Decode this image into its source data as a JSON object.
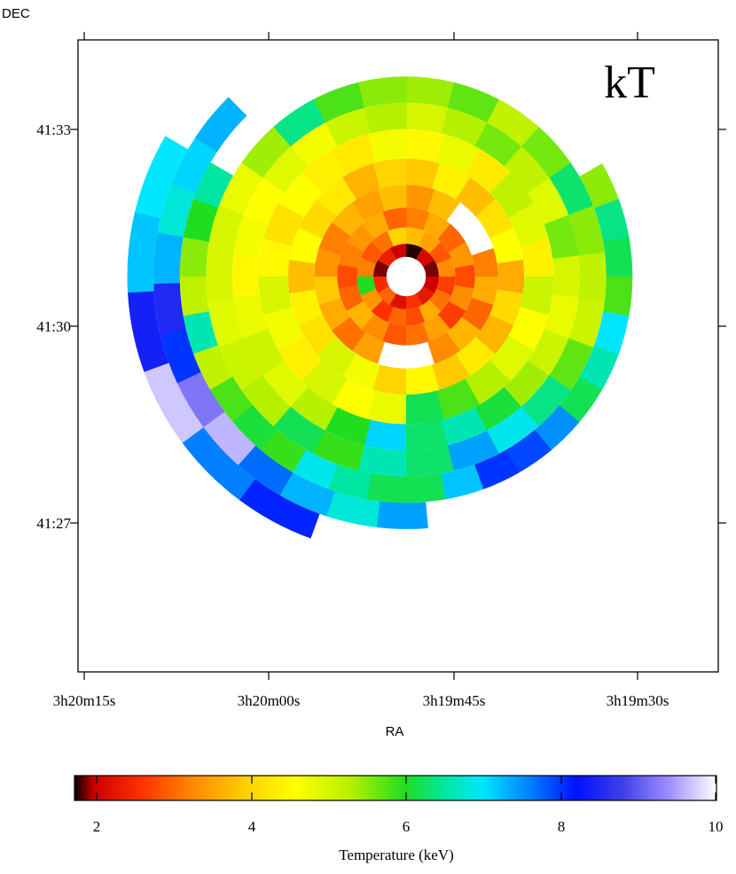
{
  "chart_data": {
    "type": "heatmap",
    "title": "kT",
    "xlabel": "RA",
    "ylabel": "DEC",
    "x_ticks": [
      "3h20m15s",
      "3h20m00s",
      "3h19m45s",
      "3h19m30s"
    ],
    "y_ticks": [
      "41:33",
      "41:30",
      "41:27"
    ],
    "colorbar": {
      "label": "Temperature (keV)",
      "ticks": [
        "2",
        "4",
        "6",
        "8",
        "10"
      ],
      "range": [
        1.75,
        10
      ],
      "stops": [
        {
          "v": 1.75,
          "color": "#000000"
        },
        {
          "v": 2.0,
          "color": "#cc0000"
        },
        {
          "v": 2.6,
          "color": "#ff3000"
        },
        {
          "v": 3.3,
          "color": "#ff8c00"
        },
        {
          "v": 4.0,
          "color": "#ffd400"
        },
        {
          "v": 4.6,
          "color": "#ffff00"
        },
        {
          "v": 5.3,
          "color": "#b5f000"
        },
        {
          "v": 6.0,
          "color": "#20dd20"
        },
        {
          "v": 6.5,
          "color": "#00e6a0"
        },
        {
          "v": 7.0,
          "color": "#00e6ff"
        },
        {
          "v": 7.6,
          "color": "#0080ff"
        },
        {
          "v": 8.2,
          "color": "#0010ff"
        },
        {
          "v": 8.8,
          "color": "#4040e8"
        },
        {
          "v": 9.4,
          "color": "#a090ff"
        },
        {
          "v": 10.0,
          "color": "#ffffff"
        }
      ]
    },
    "rings": [
      {
        "r_in": 0.3,
        "r_out": 0.5,
        "values": [
          1.8,
          2.1,
          1.9,
          2.0,
          2.3,
          2.6,
          2.2,
          3.0,
          2.5,
          1.9,
          2.4,
          2.0
        ]
      },
      {
        "r_in": 0.5,
        "r_out": 0.75,
        "values": [
          3.8,
          3.5,
          2.9,
          3.3,
          2.7,
          3.1,
          3.6,
          2.8,
          3.0,
          2.6,
          3.4,
          6.0,
          3.2,
          2.9,
          3.1,
          4.0
        ]
      },
      {
        "r_in": 0.75,
        "r_out": 1.05,
        "values": [
          3.2,
          3.6,
          3.0,
          3.4,
          2.8,
          3.3,
          2.7,
          3.5,
          3.1,
          2.9,
          3.3,
          3.7,
          3.0,
          2.8,
          3.2,
          3.4,
          3.6,
          3.0
        ]
      },
      {
        "r_in": 1.05,
        "r_out": 1.4,
        "values": [
          3.4,
          3.8,
          10.0,
          10.0,
          3.2,
          3.6,
          3.0,
          3.7,
          3.3,
          10.0,
          10.0,
          3.5,
          3.1,
          3.6,
          3.9,
          3.4,
          3.2,
          3.7,
          3.5,
          3.8
        ]
      },
      {
        "r_in": 1.4,
        "r_out": 1.8,
        "values": [
          3.9,
          4.4,
          3.8,
          4.2,
          4.6,
          3.6,
          4.1,
          3.7,
          4.3,
          3.9,
          4.5,
          4.0,
          4.7,
          5.0,
          4.2,
          4.4,
          3.8,
          4.6,
          4.1,
          4.3,
          3.7,
          4.0
        ]
      },
      {
        "r_in": 1.8,
        "r_out": 2.25,
        "values": [
          4.5,
          4.8,
          4.3,
          5.2,
          4.9,
          4.4,
          5.1,
          4.6,
          4.9,
          5.3,
          5.8,
          6.2,
          4.8,
          4.6,
          5.0,
          4.4,
          4.7,
          5.0,
          4.5,
          4.2,
          4.6,
          4.4,
          4.3,
          4.7
        ]
      },
      {
        "r_in": 2.25,
        "r_out": 2.65,
        "values": [
          5.0,
          5.3,
          5.6,
          5.2,
          4.9,
          5.6,
          5.0,
          4.8,
          5.1,
          5.4,
          6.1,
          6.6,
          6.3,
          7.1,
          6.0,
          5.3,
          4.9,
          5.1,
          4.8,
          4.5,
          4.7,
          4.6,
          4.9,
          4.7,
          5.1,
          5.3
        ]
      },
      {
        "r_in": 2.65,
        "r_out": 3.05,
        "values": [
          5.4,
          5.7,
          5.2,
          5.6,
          6.3,
          5.5,
          5.2,
          5.1,
          5.7,
          6.4,
          6.9,
          7.4,
          6.3,
          6.6,
          5.9,
          6.2,
          5.3,
          5.1,
          4.9,
          5.0,
          5.0,
          4.8,
          5.4,
          6.4,
          5.8,
          5.5
        ]
      },
      {
        "r_in": 3.05,
        "r_out": 3.45,
        "values": [
          5.5,
          6.4,
          6.2,
          5.8,
          7.0,
          6.6,
          6.2,
          7.5,
          7.9,
          8.0,
          7.2,
          6.2,
          6.2,
          6.5,
          6.9,
          5.9,
          6.1,
          5.8,
          5.2,
          6.6,
          5.2,
          5.5,
          6.0,
          6.5
        ]
      },
      {
        "r_in": 3.45,
        "r_out": 3.85,
        "values": [
          7.4,
          6.8,
          7.3,
          7.7,
          9.6,
          9.2,
          8.0,
          8.5,
          7.3,
          6.8,
          7.1,
          7.3
        ]
      },
      {
        "r_in": 3.85,
        "r_out": 4.25,
        "values": [
          8.1,
          7.6,
          9.7,
          8.4,
          7.2,
          7.0
        ]
      }
    ],
    "ring_arcs": [
      [
        0,
        360
      ],
      [
        0,
        360
      ],
      [
        0,
        360
      ],
      [
        0,
        360
      ],
      [
        0,
        360
      ],
      [
        0,
        360
      ],
      [
        0,
        360
      ],
      [
        0,
        360
      ],
      [
        60,
        300
      ],
      [
        175,
        315
      ],
      [
        200,
        300
      ]
    ]
  }
}
